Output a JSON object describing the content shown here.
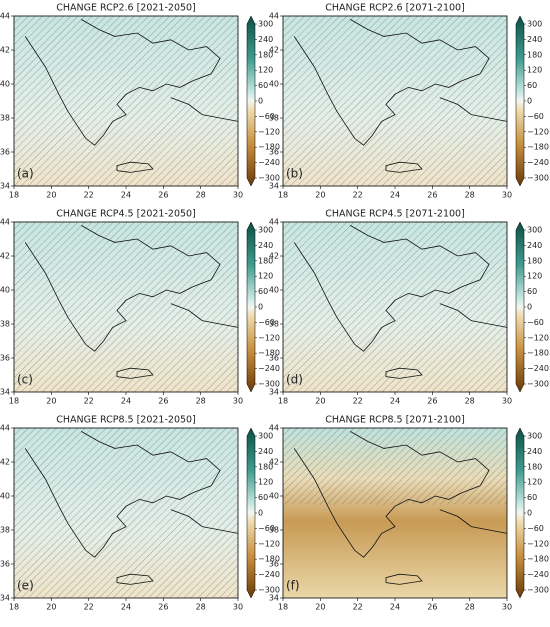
{
  "panels": [
    {
      "title": "CHANGE RCP2.6 [2021-2050]",
      "label": "(a)"
    },
    {
      "title": "CHANGE RCP2.6 [2071-2100]",
      "label": "(b)"
    },
    {
      "title": "CHANGE RCP4.5 [2021-2050]",
      "label": "(c)"
    },
    {
      "title": "CHANGE RCP4.5 [2071-2100]",
      "label": "(d)"
    },
    {
      "title": "CHANGE RCP8.5 [2021-2050]",
      "label": "(e)"
    },
    {
      "title": "CHANGE RCP8.5 [2071-2100]",
      "label": "(f)"
    }
  ],
  "lon_ticks": [
    "18",
    "20",
    "22",
    "24",
    "26",
    "28",
    "30"
  ],
  "lat_ticks": [
    "44",
    "42",
    "40",
    "38",
    "36",
    "34"
  ],
  "colorbar_ticks": [
    "300",
    "240",
    "180",
    "120",
    "60",
    "0",
    "−60",
    "−120",
    "−180",
    "−240",
    "−300"
  ]
}
